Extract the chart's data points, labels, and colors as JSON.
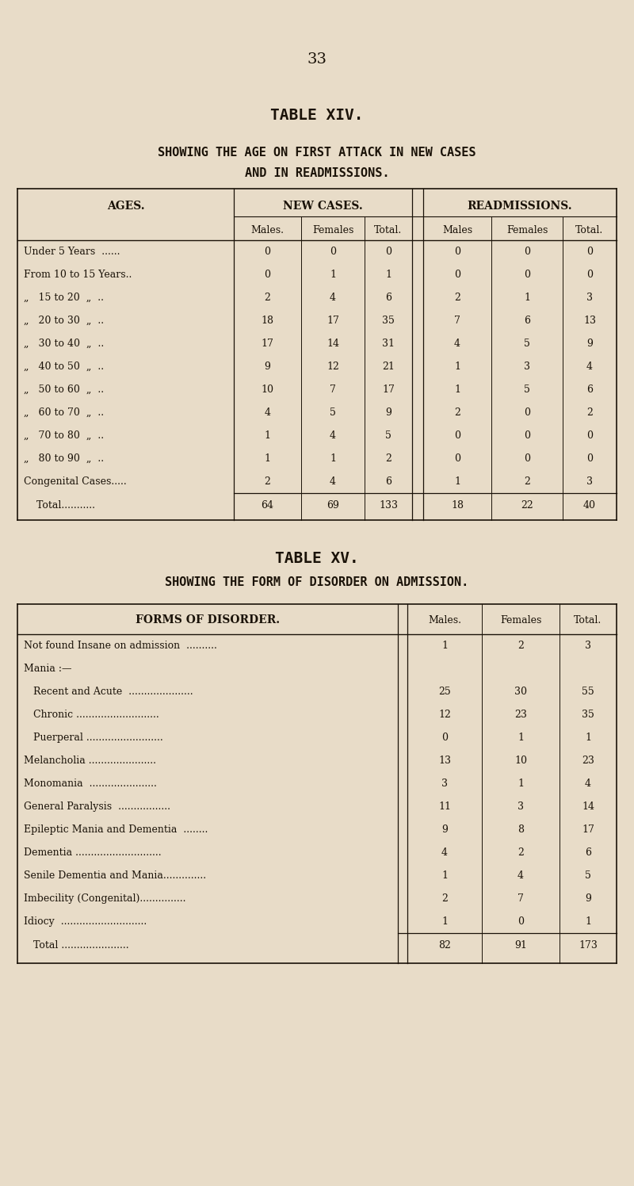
{
  "bg_color": "#e8dcc8",
  "text_color": "#1a1208",
  "page_number": "33",
  "figw": 8.0,
  "figh": 14.96,
  "dpi": 100,
  "table14": {
    "title1": "TABLE XIV.",
    "title2": "SHOWING THE AGE ON FIRST ATTACK IN NEW CASES",
    "title3": "AND IN READMISSIONS.",
    "rows": [
      [
        "Under 5 Years  ......",
        "0",
        "0",
        "0",
        "0",
        "0",
        "0"
      ],
      [
        "From 10 to 15 Years..",
        "0",
        "1",
        "1",
        "0",
        "0",
        "0"
      ],
      [
        "„   15 to 20  „  ..",
        "2",
        "4",
        "6",
        "2",
        "1",
        "3"
      ],
      [
        "„   20 to 30  „  ..",
        "18",
        "17",
        "35",
        "7",
        "6",
        "13"
      ],
      [
        "„   30 to 40  „  ..",
        "17",
        "14",
        "31",
        "4",
        "5",
        "9"
      ],
      [
        "„   40 to 50  „  ..",
        "9",
        "12",
        "21",
        "1",
        "3",
        "4"
      ],
      [
        "„   50 to 60  „  ..",
        "10",
        "7",
        "17",
        "1",
        "5",
        "6"
      ],
      [
        "„   60 to 70  „  ..",
        "4",
        "5",
        "9",
        "2",
        "0",
        "2"
      ],
      [
        "„   70 to 80  „  ..",
        "1",
        "4",
        "5",
        "0",
        "0",
        "0"
      ],
      [
        "„   80 to 90  „  ..",
        "1",
        "1",
        "2",
        "0",
        "0",
        "0"
      ],
      [
        "Congenital Cases.....",
        "2",
        "4",
        "6",
        "1",
        "2",
        "3"
      ]
    ],
    "total_row": [
      "    Total...........",
      "64",
      "69",
      "133",
      "18",
      "22",
      "40"
    ]
  },
  "table15": {
    "title1": "TABLE XV.",
    "title2": "SHOWING THE FORM OF DISORDER ON ADMISSION.",
    "rows": [
      [
        "Not found Insane on admission  ..........",
        "1",
        "2",
        "3"
      ],
      [
        "Mania :—",
        "",
        "",
        ""
      ],
      [
        "   Recent and Acute  .....................",
        "25",
        "30",
        "55"
      ],
      [
        "   Chronic ...........................",
        "12",
        "23",
        "35"
      ],
      [
        "   Puerperal .........................",
        "0",
        "1",
        "1"
      ],
      [
        "Melancholia ......................",
        "13",
        "10",
        "23"
      ],
      [
        "Monomania  ......................",
        "3",
        "1",
        "4"
      ],
      [
        "General Paralysis  .................",
        "11",
        "3",
        "14"
      ],
      [
        "Epileptic Mania and Dementia  ........",
        "9",
        "8",
        "17"
      ],
      [
        "Dementia ............................",
        "4",
        "2",
        "6"
      ],
      [
        "Senile Dementia and Mania..............",
        "1",
        "4",
        "5"
      ],
      [
        "Imbecility (Congenital)...............",
        "2",
        "7",
        "9"
      ],
      [
        "Idiocy  ............................",
        "1",
        "0",
        "1"
      ]
    ],
    "total_row": [
      "   Total ......................",
      "82",
      "91",
      "173"
    ]
  }
}
